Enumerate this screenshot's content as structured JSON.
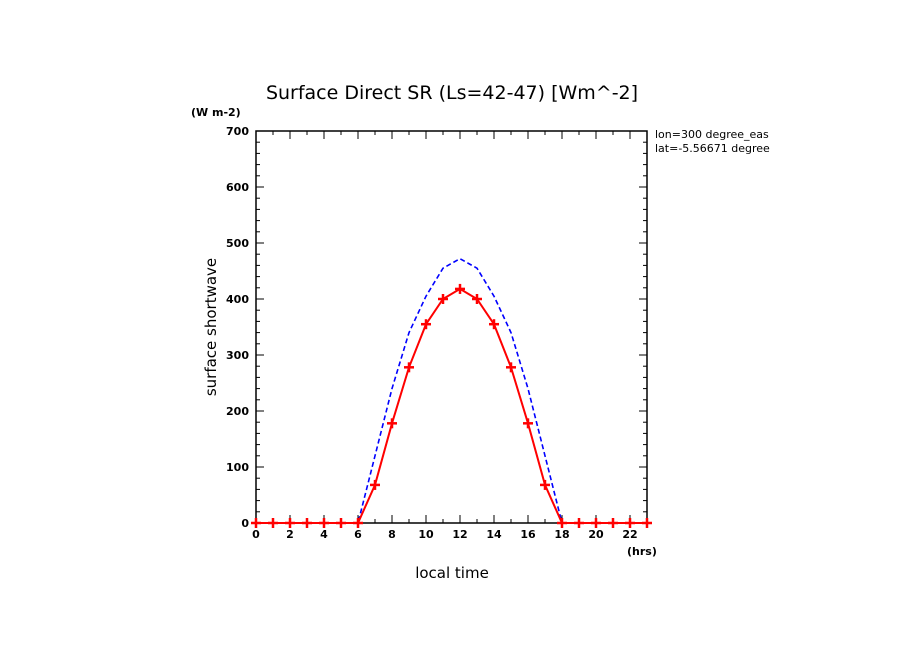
{
  "chart_data": {
    "type": "line",
    "title": "Surface Direct SR (Ls=42-47) [Wm^-2]",
    "yunit": "(W m-2)",
    "xunit": "(hrs)",
    "xlabel": "local time",
    "ylabel": "surface shortwave",
    "annotations": [
      "lon=300 degree_eas",
      "lat=-5.56671 degree"
    ],
    "xlim": [
      0,
      23
    ],
    "ylim": [
      0,
      700
    ],
    "x_ticks": [
      0,
      2,
      4,
      6,
      8,
      10,
      12,
      14,
      16,
      18,
      20,
      22
    ],
    "y_ticks": [
      0,
      100,
      200,
      300,
      400,
      500,
      600,
      700
    ],
    "grid": false,
    "x": [
      0,
      1,
      2,
      3,
      4,
      5,
      6,
      7,
      8,
      9,
      10,
      11,
      12,
      13,
      14,
      15,
      16,
      17,
      18,
      19,
      20,
      21,
      22,
      23
    ],
    "series": [
      {
        "color": "#ff0000",
        "style": "solid",
        "marker": "plus",
        "values": [
          0,
          0,
          0,
          0,
          0,
          0,
          0,
          68,
          178,
          278,
          355,
          400,
          418,
          400,
          355,
          278,
          178,
          68,
          0,
          0,
          0,
          0,
          0,
          0
        ]
      },
      {
        "color": "#0000ff",
        "style": "dashed",
        "marker": "none",
        "values": [
          0,
          0,
          0,
          0,
          0,
          0,
          0,
          120,
          240,
          340,
          405,
          455,
          472,
          455,
          405,
          340,
          240,
          120,
          0,
          0,
          0,
          0,
          0,
          0
        ]
      }
    ]
  }
}
